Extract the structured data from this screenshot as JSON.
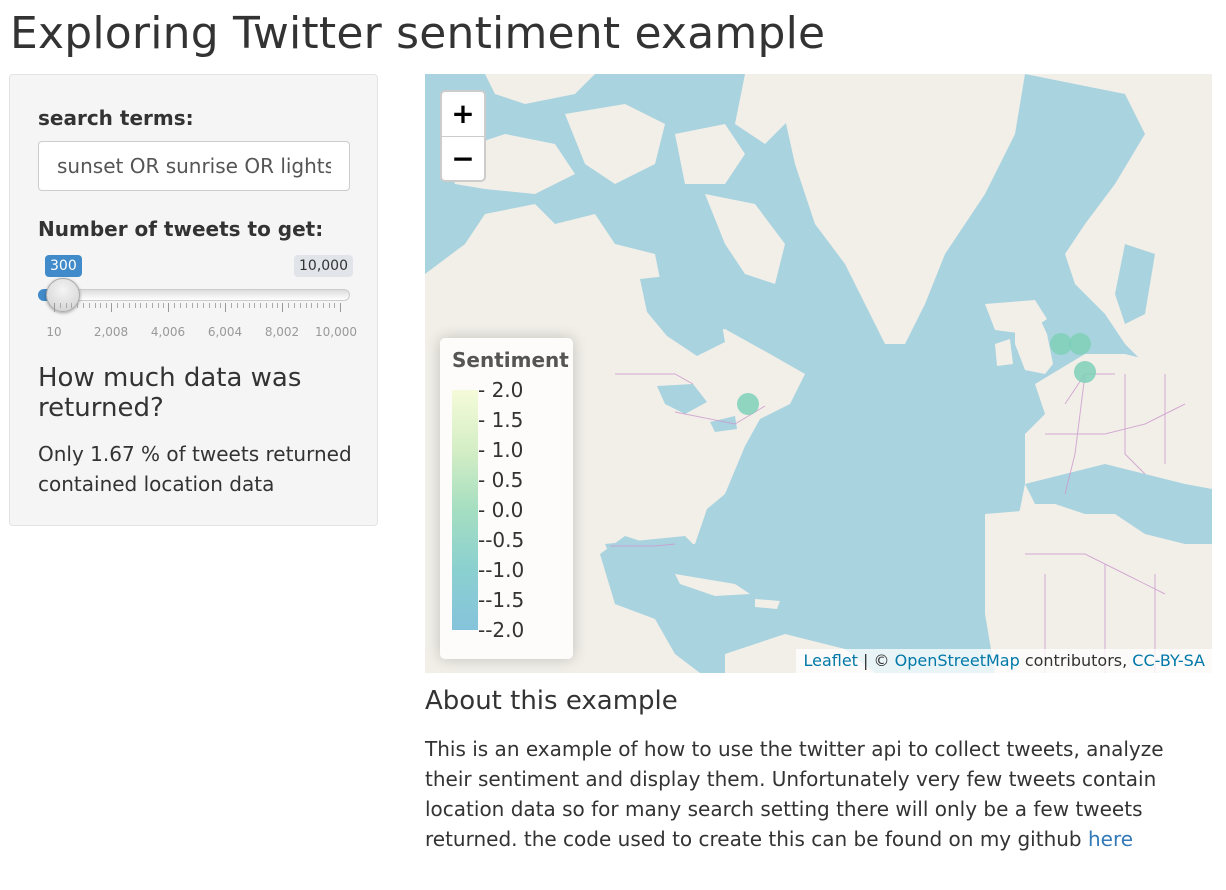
{
  "page": {
    "title": "Exploring Twitter sentiment example"
  },
  "sidebar": {
    "search_label": "search terms:",
    "search_value": "sunset OR sunrise OR lights",
    "slider_label": "Number of tweets to get:",
    "slider": {
      "min": 10,
      "max": 10000,
      "value": 300,
      "value_label": "300",
      "max_label": "10,000",
      "tick_labels": [
        "10",
        "2,008",
        "4,006",
        "6,004",
        "8,002",
        "10,000"
      ]
    },
    "data_heading": "How much data was returned?",
    "data_text": "Only 1.67 % of tweets returned contained location data"
  },
  "map": {
    "zoom_in": "+",
    "zoom_out": "−",
    "legend": {
      "title": "Sentiment",
      "items": [
        "- 2.0",
        "- 1.5",
        "- 1.0",
        "- 0.5",
        "- 0.0",
        "--0.5",
        "--1.0",
        "--1.5",
        "--2.0"
      ]
    },
    "attribution": {
      "leaflet": "Leaflet",
      "sep1": " | © ",
      "osm": "OpenStreetMap",
      "contrib": " contributors, ",
      "license": "CC-BY-SA"
    },
    "markers": [
      {
        "label": "tweet-north-america"
      },
      {
        "label": "tweet-europe-1"
      },
      {
        "label": "tweet-europe-2"
      },
      {
        "label": "tweet-europe-3"
      }
    ],
    "colors": {
      "water": "#a9d3df",
      "land": "#f2efe9",
      "marker": "#7fd0b8",
      "border": "#cc99cc"
    }
  },
  "about": {
    "heading": "About this example",
    "text": "This is an example of how to use the twitter api to collect tweets, analyze their sentiment and display them. Unfortunately very few tweets contain location data so for many search setting there will only be a few tweets returned. the code used to create this can be found on my github ",
    "link_text": "here"
  }
}
